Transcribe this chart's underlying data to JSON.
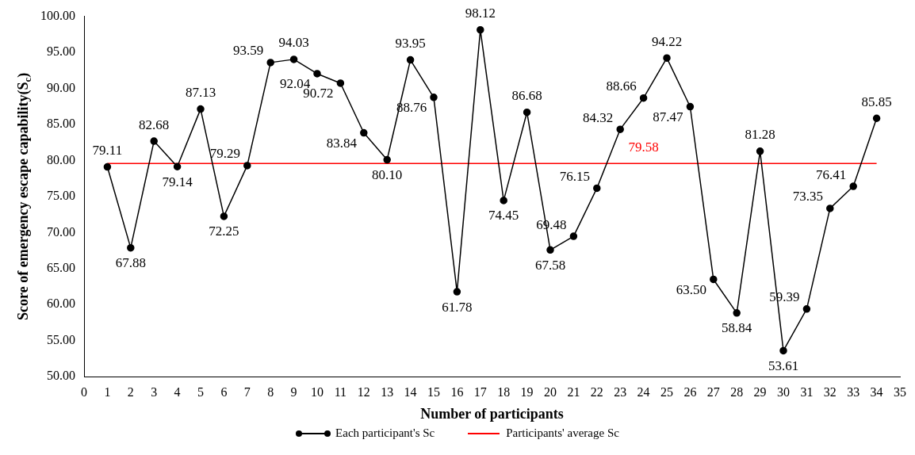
{
  "chart_data": {
    "type": "line",
    "xlabel": "Number of participants",
    "ylabel": "Score of emergency escape capability(S$_{c}$)",
    "x": [
      1,
      2,
      3,
      4,
      5,
      6,
      7,
      8,
      9,
      10,
      11,
      12,
      13,
      14,
      15,
      16,
      17,
      18,
      19,
      20,
      21,
      22,
      23,
      24,
      25,
      26,
      27,
      28,
      29,
      30,
      31,
      32,
      33,
      34
    ],
    "xlim": [
      0,
      35
    ],
    "xticks": [
      0,
      1,
      2,
      3,
      4,
      5,
      6,
      7,
      8,
      9,
      10,
      11,
      12,
      13,
      14,
      15,
      16,
      17,
      18,
      19,
      20,
      21,
      22,
      23,
      24,
      25,
      26,
      27,
      28,
      29,
      30,
      31,
      32,
      33,
      34,
      35
    ],
    "ylim": [
      50,
      100
    ],
    "yticks": [
      {
        "value": 50,
        "label": "50.00"
      },
      {
        "value": 55,
        "label": "55.00"
      },
      {
        "value": 60,
        "label": "60.00"
      },
      {
        "value": 65,
        "label": "65.00"
      },
      {
        "value": 70,
        "label": "70.00"
      },
      {
        "value": 75,
        "label": "75.00"
      },
      {
        "value": 80,
        "label": "80.00"
      },
      {
        "value": 85,
        "label": "85.00"
      },
      {
        "value": 90,
        "label": "90.00"
      },
      {
        "value": 95,
        "label": "95.00"
      },
      {
        "value": 100,
        "label": "100.00"
      }
    ],
    "series": [
      {
        "name": "Each participant's Sc",
        "color": "#000000",
        "marker": "circle",
        "values": [
          79.11,
          67.88,
          82.68,
          79.14,
          87.13,
          72.25,
          79.29,
          93.59,
          94.03,
          92.04,
          90.72,
          83.84,
          80.1,
          93.95,
          88.76,
          61.78,
          98.12,
          74.45,
          86.68,
          67.58,
          69.48,
          76.15,
          84.32,
          88.66,
          94.22,
          87.47,
          63.5,
          58.84,
          81.28,
          53.61,
          59.39,
          73.35,
          76.41,
          85.85
        ],
        "value_labels": [
          "79.11",
          "67.88",
          "82.68",
          "79.14",
          "87.13",
          "72.25",
          "79.29",
          "93.59",
          "94.03",
          "92.04",
          "90.72",
          "83.84",
          "80.10",
          "93.95",
          "88.76",
          "61.78",
          "98.12",
          "74.45",
          "86.68",
          "67.58",
          "69.48",
          "76.15",
          "84.32",
          "88.66",
          "94.22",
          "87.47",
          "63.50",
          "58.84",
          "81.28",
          "53.61",
          "59.39",
          "73.35",
          "76.41",
          "85.85"
        ]
      },
      {
        "name": "Participants' average Sc",
        "color": "#ff0000",
        "marker": "none",
        "x": [
          1,
          34
        ],
        "values": [
          79.58,
          79.58
        ]
      }
    ],
    "annotations": [
      {
        "text": "79.58",
        "x": 24,
        "y": 79.58
      }
    ],
    "grid": false,
    "legend": "bottom"
  }
}
